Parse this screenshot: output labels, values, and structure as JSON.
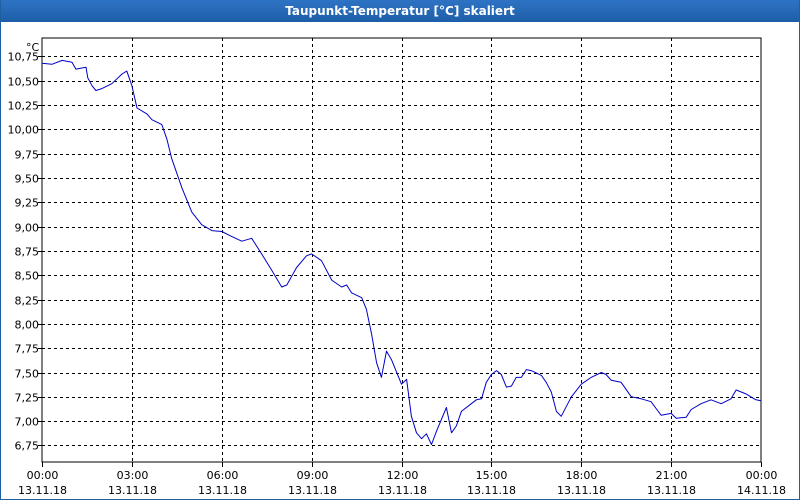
{
  "window": {
    "title": "Taupunkt-Temperatur [°C] skaliert"
  },
  "colors": {
    "line": "#0000c8",
    "grid": "#000000",
    "titlebar": "#1d5ea8"
  },
  "chart_data": {
    "type": "line",
    "title": "Taupunkt-Temperatur [°C] skaliert",
    "ylabel": "°C",
    "xlabel": "",
    "ylim": [
      6.58,
      10.94
    ],
    "xlim": [
      0,
      24
    ],
    "grid": true,
    "y_ticks": [
      {
        "value": 6.75,
        "label": "6,75"
      },
      {
        "value": 7.0,
        "label": "7,00"
      },
      {
        "value": 7.25,
        "label": "7,25"
      },
      {
        "value": 7.5,
        "label": "7,50"
      },
      {
        "value": 7.75,
        "label": "7,75"
      },
      {
        "value": 8.0,
        "label": "8,00"
      },
      {
        "value": 8.25,
        "label": "8,25"
      },
      {
        "value": 8.5,
        "label": "8,50"
      },
      {
        "value": 8.75,
        "label": "8,75"
      },
      {
        "value": 9.0,
        "label": "9,00"
      },
      {
        "value": 9.25,
        "label": "9,25"
      },
      {
        "value": 9.5,
        "label": "9,50"
      },
      {
        "value": 9.75,
        "label": "9,75"
      },
      {
        "value": 10.0,
        "label": "10,00"
      },
      {
        "value": 10.25,
        "label": "10,25"
      },
      {
        "value": 10.5,
        "label": "10,50"
      },
      {
        "value": 10.75,
        "label": "10,75"
      }
    ],
    "x_ticks": [
      {
        "hour": 0,
        "time": "00:00",
        "date": "13.11.18"
      },
      {
        "hour": 3,
        "time": "03:00",
        "date": "13.11.18"
      },
      {
        "hour": 6,
        "time": "06:00",
        "date": "13.11.18"
      },
      {
        "hour": 9,
        "time": "09:00",
        "date": "13.11.18"
      },
      {
        "hour": 12,
        "time": "12:00",
        "date": "13.11.18"
      },
      {
        "hour": 15,
        "time": "15:00",
        "date": "13.11.18"
      },
      {
        "hour": 18,
        "time": "18:00",
        "date": "13.11.18"
      },
      {
        "hour": 21,
        "time": "21:00",
        "date": "13.11.18"
      },
      {
        "hour": 24,
        "time": "00:00",
        "date": "14.11.18"
      }
    ],
    "series": [
      {
        "points": [
          [
            0.0,
            10.68
          ],
          [
            0.33,
            10.67
          ],
          [
            0.67,
            10.71
          ],
          [
            1.0,
            10.69
          ],
          [
            1.13,
            10.62
          ],
          [
            1.47,
            10.64
          ],
          [
            1.53,
            10.53
          ],
          [
            1.67,
            10.45
          ],
          [
            1.8,
            10.4
          ],
          [
            2.0,
            10.42
          ],
          [
            2.33,
            10.47
          ],
          [
            2.67,
            10.57
          ],
          [
            2.83,
            10.6
          ],
          [
            3.0,
            10.45
          ],
          [
            3.17,
            10.22
          ],
          [
            3.5,
            10.16
          ],
          [
            3.67,
            10.1
          ],
          [
            4.0,
            10.05
          ],
          [
            4.17,
            9.9
          ],
          [
            4.33,
            9.7
          ],
          [
            4.67,
            9.4
          ],
          [
            5.0,
            9.15
          ],
          [
            5.33,
            9.02
          ],
          [
            5.67,
            8.96
          ],
          [
            6.0,
            8.95
          ],
          [
            6.33,
            8.9
          ],
          [
            6.67,
            8.85
          ],
          [
            7.0,
            8.88
          ],
          [
            7.33,
            8.72
          ],
          [
            7.67,
            8.55
          ],
          [
            8.0,
            8.38
          ],
          [
            8.17,
            8.4
          ],
          [
            8.5,
            8.58
          ],
          [
            8.83,
            8.7
          ],
          [
            9.0,
            8.72
          ],
          [
            9.33,
            8.65
          ],
          [
            9.67,
            8.45
          ],
          [
            10.0,
            8.38
          ],
          [
            10.17,
            8.4
          ],
          [
            10.33,
            8.32
          ],
          [
            10.67,
            8.27
          ],
          [
            10.83,
            8.15
          ],
          [
            11.0,
            7.9
          ],
          [
            11.17,
            7.6
          ],
          [
            11.33,
            7.45
          ],
          [
            11.5,
            7.72
          ],
          [
            11.67,
            7.63
          ],
          [
            12.0,
            7.38
          ],
          [
            12.17,
            7.43
          ],
          [
            12.33,
            7.05
          ],
          [
            12.5,
            6.88
          ],
          [
            12.67,
            6.82
          ],
          [
            12.83,
            6.87
          ],
          [
            13.0,
            6.76
          ],
          [
            13.17,
            6.9
          ],
          [
            13.5,
            7.14
          ],
          [
            13.67,
            6.88
          ],
          [
            13.83,
            6.95
          ],
          [
            14.0,
            7.1
          ],
          [
            14.33,
            7.18
          ],
          [
            14.5,
            7.22
          ],
          [
            14.67,
            7.23
          ],
          [
            14.83,
            7.4
          ],
          [
            15.0,
            7.48
          ],
          [
            15.17,
            7.52
          ],
          [
            15.33,
            7.48
          ],
          [
            15.5,
            7.35
          ],
          [
            15.67,
            7.36
          ],
          [
            15.83,
            7.45
          ],
          [
            16.0,
            7.45
          ],
          [
            16.17,
            7.53
          ],
          [
            16.33,
            7.52
          ],
          [
            16.67,
            7.47
          ],
          [
            16.83,
            7.4
          ],
          [
            17.0,
            7.3
          ],
          [
            17.17,
            7.1
          ],
          [
            17.33,
            7.05
          ],
          [
            17.67,
            7.25
          ],
          [
            18.0,
            7.38
          ],
          [
            18.33,
            7.45
          ],
          [
            18.67,
            7.5
          ],
          [
            18.83,
            7.48
          ],
          [
            19.0,
            7.42
          ],
          [
            19.33,
            7.4
          ],
          [
            19.67,
            7.25
          ],
          [
            20.0,
            7.23
          ],
          [
            20.33,
            7.2
          ],
          [
            20.5,
            7.13
          ],
          [
            20.67,
            7.06
          ],
          [
            21.0,
            7.08
          ],
          [
            21.17,
            7.03
          ],
          [
            21.5,
            7.04
          ],
          [
            21.67,
            7.12
          ],
          [
            22.0,
            7.18
          ],
          [
            22.33,
            7.22
          ],
          [
            22.67,
            7.18
          ],
          [
            23.0,
            7.23
          ],
          [
            23.17,
            7.32
          ],
          [
            23.5,
            7.28
          ],
          [
            23.83,
            7.22
          ],
          [
            24.0,
            7.21
          ]
        ]
      }
    ]
  }
}
